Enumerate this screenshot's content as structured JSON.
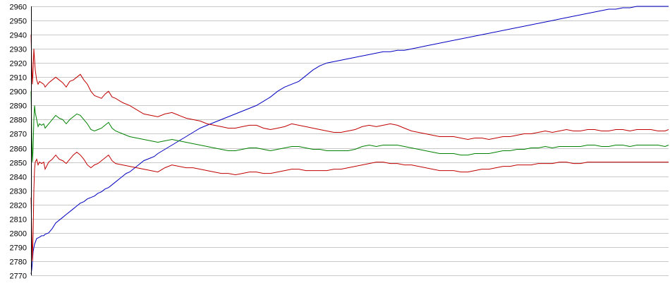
{
  "chart_data": {
    "type": "line",
    "title": "",
    "xlabel": "",
    "ylabel": "",
    "ylim": [
      2770,
      2960
    ],
    "y_ticks": [
      2960,
      2950,
      2940,
      2930,
      2920,
      2910,
      2900,
      2890,
      2880,
      2870,
      2860,
      2850,
      2840,
      2830,
      2820,
      2810,
      2800,
      2790,
      2780,
      2770
    ],
    "x_tick_labels": [],
    "grid": true,
    "legend": "none",
    "series": [
      {
        "color": "#0000c0",
        "x": [
          0,
          1,
          2,
          3,
          5,
          8,
          12,
          15,
          18,
          20,
          25,
          30,
          35,
          40,
          45,
          50,
          55,
          60,
          65,
          70,
          75,
          80,
          85,
          90,
          95,
          100,
          105,
          110,
          115,
          120,
          125,
          130,
          135,
          140,
          145,
          150,
          155,
          160,
          165,
          170,
          175,
          180,
          190,
          200,
          210,
          220,
          230,
          240,
          250,
          260,
          270,
          280,
          290,
          300,
          310,
          320,
          330,
          340,
          350,
          360,
          370,
          380,
          390,
          400,
          410,
          420,
          430,
          440,
          450,
          460,
          470,
          480,
          490,
          500,
          510,
          520,
          530,
          540,
          550,
          560,
          570,
          580,
          590,
          600,
          610,
          620,
          630,
          640,
          650,
          660,
          670,
          680,
          690,
          700,
          710,
          720,
          730,
          740,
          750,
          760,
          770,
          780,
          790,
          800,
          810,
          820,
          830,
          840,
          850,
          860,
          870,
          880,
          890,
          900,
          905
        ],
        "values": [
          2771,
          2774,
          2780,
          2787,
          2792,
          2796,
          2797,
          2798,
          2798,
          2799,
          2800,
          2803,
          2807,
          2809,
          2811,
          2813,
          2815,
          2817,
          2819,
          2821,
          2822,
          2824,
          2825,
          2826,
          2828,
          2829,
          2831,
          2832,
          2834,
          2836,
          2838,
          2840,
          2842,
          2843,
          2845,
          2847,
          2849,
          2851,
          2852,
          2853,
          2854,
          2856,
          2859,
          2862,
          2865,
          2868,
          2871,
          2874,
          2876,
          2878,
          2880,
          2882,
          2884,
          2886,
          2888,
          2890,
          2893,
          2896,
          2900,
          2903,
          2905,
          2907,
          2911,
          2915,
          2918,
          2920,
          2921,
          2922,
          2923,
          2924,
          2925,
          2926,
          2927,
          2928,
          2928,
          2929,
          2929,
          2930,
          2931,
          2932,
          2933,
          2934,
          2935,
          2936,
          2937,
          2938,
          2939,
          2940,
          2941,
          2942,
          2943,
          2944,
          2945,
          2946,
          2947,
          2948,
          2949,
          2950,
          2951,
          2952,
          2953,
          2954,
          2955,
          2956,
          2957,
          2958,
          2958,
          2959,
          2959,
          2960,
          2960,
          2960,
          2960,
          2960,
          2960
        ]
      },
      {
        "color": "#c00000",
        "x": [
          0,
          1,
          2,
          3,
          4,
          5,
          6,
          8,
          10,
          12,
          15,
          18,
          20,
          25,
          30,
          35,
          40,
          45,
          50,
          55,
          60,
          65,
          70,
          75,
          80,
          85,
          90,
          95,
          100,
          105,
          110,
          115,
          120,
          130,
          140,
          150,
          160,
          170,
          180,
          190,
          200,
          210,
          220,
          230,
          240,
          250,
          260,
          270,
          280,
          290,
          300,
          310,
          320,
          330,
          340,
          350,
          360,
          370,
          380,
          390,
          400,
          410,
          420,
          430,
          440,
          450,
          460,
          470,
          480,
          490,
          500,
          510,
          520,
          530,
          540,
          550,
          560,
          570,
          580,
          590,
          600,
          610,
          620,
          630,
          640,
          650,
          660,
          670,
          680,
          690,
          700,
          710,
          720,
          730,
          740,
          750,
          760,
          770,
          780,
          790,
          800,
          810,
          820,
          830,
          840,
          850,
          860,
          870,
          880,
          890,
          900,
          905
        ],
        "values": [
          2940,
          2920,
          2905,
          2915,
          2930,
          2922,
          2915,
          2908,
          2905,
          2907,
          2906,
          2905,
          2903,
          2906,
          2908,
          2910,
          2908,
          2906,
          2903,
          2907,
          2908,
          2910,
          2912,
          2908,
          2905,
          2900,
          2897,
          2896,
          2895,
          2898,
          2900,
          2896,
          2895,
          2892,
          2890,
          2887,
          2884,
          2883,
          2882,
          2884,
          2885,
          2883,
          2881,
          2880,
          2879,
          2877,
          2876,
          2875,
          2874,
          2874,
          2875,
          2876,
          2876,
          2874,
          2873,
          2874,
          2875,
          2877,
          2876,
          2875,
          2874,
          2873,
          2872,
          2871,
          2871,
          2872,
          2873,
          2875,
          2876,
          2875,
          2876,
          2877,
          2876,
          2874,
          2872,
          2871,
          2870,
          2869,
          2868,
          2868,
          2868,
          2867,
          2866,
          2867,
          2867,
          2866,
          2867,
          2868,
          2868,
          2869,
          2870,
          2870,
          2871,
          2872,
          2871,
          2872,
          2873,
          2872,
          2872,
          2873,
          2873,
          2872,
          2872,
          2873,
          2873,
          2872,
          2873,
          2873,
          2873,
          2872,
          2872,
          2873
        ]
      },
      {
        "color": "#008000",
        "x": [
          0,
          1,
          2,
          3,
          4,
          5,
          6,
          8,
          10,
          12,
          15,
          18,
          20,
          25,
          30,
          35,
          40,
          45,
          50,
          55,
          60,
          65,
          70,
          75,
          80,
          85,
          90,
          95,
          100,
          105,
          110,
          115,
          120,
          130,
          140,
          150,
          160,
          170,
          180,
          190,
          200,
          210,
          220,
          230,
          240,
          250,
          260,
          270,
          280,
          290,
          300,
          310,
          320,
          330,
          340,
          350,
          360,
          370,
          380,
          390,
          400,
          410,
          420,
          430,
          440,
          450,
          460,
          470,
          480,
          490,
          500,
          510,
          520,
          530,
          540,
          550,
          560,
          570,
          580,
          590,
          600,
          610,
          620,
          630,
          640,
          650,
          660,
          670,
          680,
          690,
          700,
          710,
          720,
          730,
          740,
          750,
          760,
          770,
          780,
          790,
          800,
          810,
          820,
          830,
          840,
          850,
          860,
          870,
          880,
          890,
          900,
          905
        ],
        "values": [
          2900,
          2870,
          2850,
          2860,
          2880,
          2890,
          2885,
          2880,
          2875,
          2877,
          2876,
          2877,
          2874,
          2877,
          2880,
          2883,
          2881,
          2880,
          2877,
          2880,
          2882,
          2884,
          2883,
          2880,
          2877,
          2873,
          2872,
          2873,
          2874,
          2876,
          2878,
          2874,
          2872,
          2870,
          2868,
          2867,
          2866,
          2865,
          2864,
          2865,
          2866,
          2865,
          2864,
          2863,
          2862,
          2861,
          2860,
          2859,
          2858,
          2858,
          2859,
          2860,
          2860,
          2859,
          2858,
          2859,
          2860,
          2861,
          2861,
          2860,
          2859,
          2859,
          2858,
          2858,
          2858,
          2858,
          2859,
          2861,
          2862,
          2861,
          2862,
          2862,
          2862,
          2861,
          2860,
          2859,
          2858,
          2857,
          2856,
          2856,
          2856,
          2855,
          2855,
          2856,
          2856,
          2856,
          2857,
          2858,
          2858,
          2859,
          2859,
          2860,
          2860,
          2861,
          2860,
          2861,
          2861,
          2861,
          2861,
          2862,
          2862,
          2861,
          2861,
          2862,
          2862,
          2861,
          2862,
          2862,
          2862,
          2862,
          2861,
          2862
        ]
      },
      {
        "color": "#c00000",
        "x": [
          0,
          1,
          2,
          3,
          4,
          5,
          6,
          8,
          10,
          12,
          15,
          18,
          20,
          25,
          30,
          35,
          40,
          45,
          50,
          55,
          60,
          65,
          70,
          75,
          80,
          85,
          90,
          95,
          100,
          105,
          110,
          115,
          120,
          130,
          140,
          150,
          160,
          170,
          180,
          190,
          200,
          210,
          220,
          230,
          240,
          250,
          260,
          270,
          280,
          290,
          300,
          310,
          320,
          330,
          340,
          350,
          360,
          370,
          380,
          390,
          400,
          410,
          420,
          430,
          440,
          450,
          460,
          470,
          480,
          490,
          500,
          510,
          520,
          530,
          540,
          550,
          560,
          570,
          580,
          590,
          600,
          610,
          620,
          630,
          640,
          650,
          660,
          670,
          680,
          690,
          700,
          710,
          720,
          730,
          740,
          750,
          760,
          770,
          780,
          790,
          800,
          810,
          820,
          830,
          840,
          850,
          860,
          870,
          880,
          890,
          900,
          905
        ],
        "values": [
          2825,
          2800,
          2780,
          2800,
          2830,
          2845,
          2850,
          2852,
          2848,
          2850,
          2849,
          2850,
          2845,
          2850,
          2852,
          2855,
          2852,
          2851,
          2849,
          2852,
          2855,
          2857,
          2855,
          2852,
          2848,
          2846,
          2848,
          2849,
          2851,
          2853,
          2855,
          2851,
          2849,
          2848,
          2847,
          2846,
          2845,
          2844,
          2843,
          2846,
          2848,
          2847,
          2846,
          2846,
          2845,
          2844,
          2843,
          2842,
          2842,
          2841,
          2842,
          2843,
          2843,
          2842,
          2842,
          2843,
          2844,
          2845,
          2845,
          2844,
          2844,
          2844,
          2844,
          2845,
          2845,
          2846,
          2847,
          2848,
          2849,
          2850,
          2850,
          2849,
          2849,
          2848,
          2848,
          2847,
          2846,
          2845,
          2844,
          2844,
          2844,
          2843,
          2843,
          2844,
          2845,
          2845,
          2846,
          2847,
          2847,
          2848,
          2848,
          2848,
          2849,
          2849,
          2849,
          2850,
          2850,
          2849,
          2849,
          2850,
          2850,
          2850,
          2850,
          2850,
          2850,
          2850,
          2850,
          2850,
          2850,
          2850,
          2850,
          2850
        ]
      }
    ]
  }
}
